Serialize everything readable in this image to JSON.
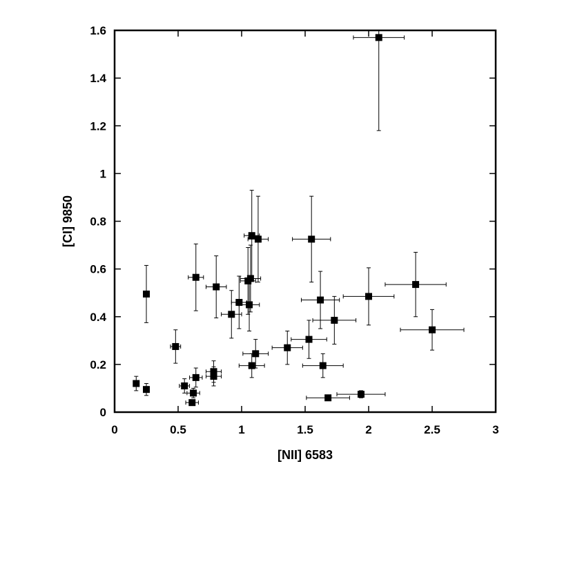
{
  "chart_data": {
    "type": "scatter",
    "xlabel": "[NII] 6583",
    "ylabel": "[CI] 9850",
    "xlim": [
      0,
      3
    ],
    "ylim": [
      0,
      1.6
    ],
    "xticks": [
      0,
      0.5,
      1,
      1.5,
      2,
      2.5,
      3
    ],
    "xtick_labels": [
      "0",
      "0.5",
      "1",
      "1.5",
      "2",
      "2.5",
      "3"
    ],
    "yticks": [
      0,
      0.2,
      0.4,
      0.6,
      0.8,
      1.0,
      1.2,
      1.4,
      1.6
    ],
    "ytick_labels": [
      "0",
      "0.2",
      "0.4",
      "0.6",
      "0.8",
      "1",
      "1.2",
      "1.4",
      "1.6"
    ],
    "grid": false,
    "marker": "filled-square",
    "color": "#000000",
    "points": [
      {
        "x": 2.08,
        "y": 1.57,
        "xerr": 0.2,
        "yerr": 0.39
      },
      {
        "x": 1.55,
        "y": 0.725,
        "xerr": 0.15,
        "yerr": 0.18
      },
      {
        "x": 1.08,
        "y": 0.74,
        "xerr": 0.06,
        "yerr": 0.19
      },
      {
        "x": 1.13,
        "y": 0.725,
        "xerr": 0.08,
        "yerr": 0.18
      },
      {
        "x": 0.64,
        "y": 0.565,
        "xerr": 0.06,
        "yerr": 0.14
      },
      {
        "x": 0.8,
        "y": 0.525,
        "xerr": 0.08,
        "yerr": 0.13
      },
      {
        "x": 1.05,
        "y": 0.55,
        "xerr": 0.06,
        "yerr": 0.14
      },
      {
        "x": 1.07,
        "y": 0.56,
        "xerr": 0.08,
        "yerr": 0.14
      },
      {
        "x": 0.25,
        "y": 0.495,
        "xerr": 0.02,
        "yerr": 0.12
      },
      {
        "x": 0.98,
        "y": 0.46,
        "xerr": 0.06,
        "yerr": 0.11
      },
      {
        "x": 1.06,
        "y": 0.45,
        "xerr": 0.08,
        "yerr": 0.11
      },
      {
        "x": 0.92,
        "y": 0.41,
        "xerr": 0.08,
        "yerr": 0.1
      },
      {
        "x": 1.62,
        "y": 0.47,
        "xerr": 0.15,
        "yerr": 0.12
      },
      {
        "x": 2.0,
        "y": 0.485,
        "xerr": 0.2,
        "yerr": 0.12
      },
      {
        "x": 2.37,
        "y": 0.535,
        "xerr": 0.24,
        "yerr": 0.135
      },
      {
        "x": 1.73,
        "y": 0.385,
        "xerr": 0.17,
        "yerr": 0.1
      },
      {
        "x": 2.5,
        "y": 0.345,
        "xerr": 0.25,
        "yerr": 0.085
      },
      {
        "x": 0.48,
        "y": 0.275,
        "xerr": 0.04,
        "yerr": 0.07
      },
      {
        "x": 1.36,
        "y": 0.27,
        "xerr": 0.12,
        "yerr": 0.07
      },
      {
        "x": 1.53,
        "y": 0.305,
        "xerr": 0.14,
        "yerr": 0.08
      },
      {
        "x": 1.11,
        "y": 0.245,
        "xerr": 0.1,
        "yerr": 0.06
      },
      {
        "x": 1.08,
        "y": 0.195,
        "xerr": 0.1,
        "yerr": 0.05
      },
      {
        "x": 1.64,
        "y": 0.195,
        "xerr": 0.16,
        "yerr": 0.05
      },
      {
        "x": 0.78,
        "y": 0.17,
        "xerr": 0.06,
        "yerr": 0.045
      },
      {
        "x": 0.78,
        "y": 0.15,
        "xerr": 0.06,
        "yerr": 0.04
      },
      {
        "x": 0.64,
        "y": 0.145,
        "xerr": 0.05,
        "yerr": 0.04
      },
      {
        "x": 0.17,
        "y": 0.12,
        "xerr": 0.02,
        "yerr": 0.03
      },
      {
        "x": 0.55,
        "y": 0.11,
        "xerr": 0.04,
        "yerr": 0.03
      },
      {
        "x": 0.25,
        "y": 0.095,
        "xerr": 0.02,
        "yerr": 0.025
      },
      {
        "x": 0.62,
        "y": 0.08,
        "xerr": 0.05,
        "yerr": 0.02
      },
      {
        "x": 0.61,
        "y": 0.04,
        "xerr": 0.05,
        "yerr": 0.01
      },
      {
        "x": 1.68,
        "y": 0.06,
        "xerr": 0.17,
        "yerr": 0.01
      },
      {
        "x": 1.94,
        "y": 0.075,
        "xerr": 0.19,
        "yerr": 0.015
      }
    ]
  }
}
